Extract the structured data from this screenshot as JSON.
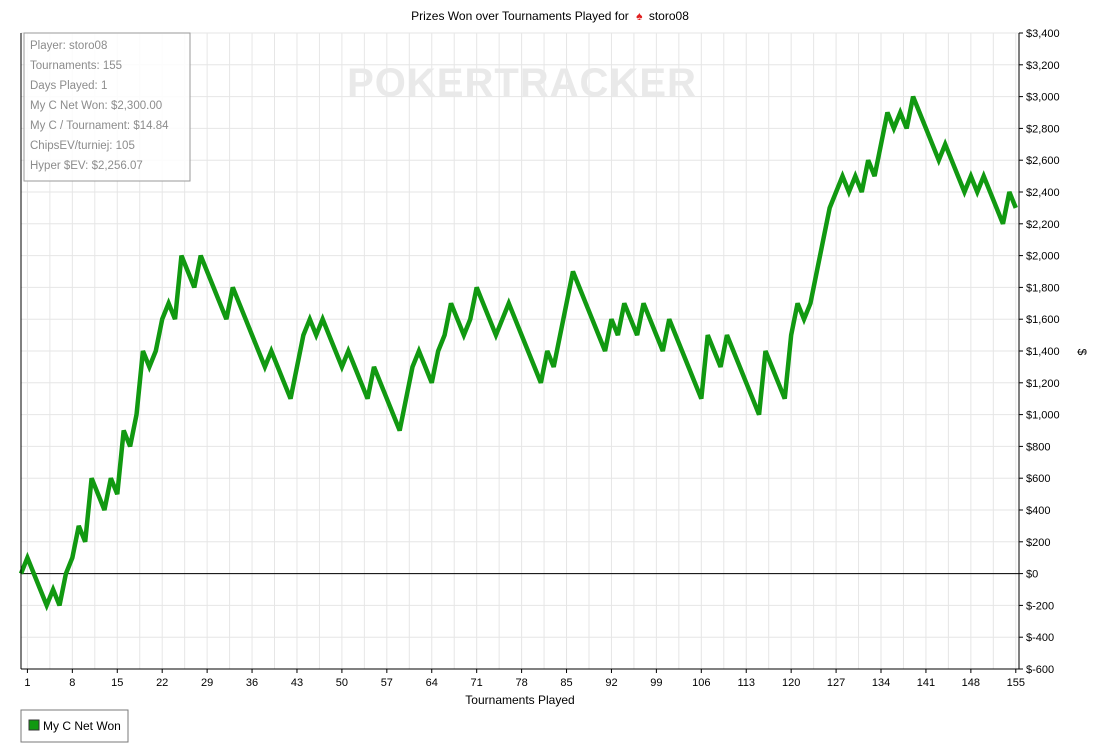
{
  "chart_data": {
    "type": "line",
    "title_prefix": "Prizes Won over Tournaments Played for",
    "player": "storo08",
    "xlabel": "Tournaments Played",
    "ylabel": "$",
    "xlim": [
      0,
      155.5
    ],
    "ylim": [
      -600,
      3400
    ],
    "y_ticks": [
      -600,
      -400,
      -200,
      0,
      200,
      400,
      600,
      800,
      1000,
      1200,
      1400,
      1600,
      1800,
      2000,
      2200,
      2400,
      2600,
      2800,
      3000,
      3200,
      3400
    ],
    "y_tick_labels": [
      "$-600",
      "$-400",
      "$-200",
      "$0",
      "$200",
      "$400",
      "$600",
      "$800",
      "$1,000",
      "$1,200",
      "$1,400",
      "$1,600",
      "$1,800",
      "$2,000",
      "$2,200",
      "$2,400",
      "$2,600",
      "$2,800",
      "$3,000",
      "$3,200",
      "$3,400"
    ],
    "x_ticks": [
      1,
      8,
      15,
      22,
      29,
      36,
      43,
      50,
      57,
      64,
      71,
      78,
      85,
      92,
      99,
      106,
      113,
      120,
      127,
      134,
      141,
      148,
      155
    ],
    "x_tick_labels": [
      "1",
      "8",
      "15",
      "22",
      "29",
      "36",
      "43",
      "50",
      "57",
      "64",
      "71",
      "78",
      "85",
      "92",
      "99",
      "106",
      "113",
      "120",
      "127",
      "134",
      "141",
      "148",
      "155"
    ],
    "grid": true,
    "legend_position": "bottom-left",
    "colors": {
      "series": "#119911",
      "zero_line": "#000000",
      "watermark": "#e9e9e9",
      "info_text": "#8c8c8c"
    },
    "series": [
      {
        "name": "My C Net Won",
        "x": [
          0,
          1,
          2,
          3,
          4,
          5,
          6,
          7,
          8,
          9,
          10,
          11,
          12,
          13,
          14,
          15,
          16,
          17,
          18,
          19,
          20,
          21,
          22,
          23,
          24,
          25,
          26,
          27,
          28,
          29,
          30,
          31,
          32,
          33,
          34,
          35,
          36,
          37,
          38,
          39,
          40,
          41,
          42,
          43,
          44,
          45,
          46,
          47,
          48,
          49,
          50,
          51,
          52,
          53,
          54,
          55,
          56,
          57,
          58,
          59,
          60,
          61,
          62,
          63,
          64,
          65,
          66,
          67,
          68,
          69,
          70,
          71,
          72,
          73,
          74,
          75,
          76,
          77,
          78,
          79,
          80,
          81,
          82,
          83,
          84,
          85,
          86,
          87,
          88,
          89,
          90,
          91,
          92,
          93,
          94,
          95,
          96,
          97,
          98,
          99,
          100,
          101,
          102,
          103,
          104,
          105,
          106,
          107,
          108,
          109,
          110,
          111,
          112,
          113,
          114,
          115,
          116,
          117,
          118,
          119,
          120,
          121,
          122,
          123,
          124,
          125,
          126,
          127,
          128,
          129,
          130,
          131,
          132,
          133,
          134,
          135,
          136,
          137,
          138,
          139,
          140,
          141,
          142,
          143,
          144,
          145,
          146,
          147,
          148,
          149,
          150,
          151,
          152,
          153,
          154,
          155
        ],
        "values": [
          0,
          100,
          0,
          -100,
          -200,
          -100,
          -200,
          0,
          100,
          300,
          200,
          600,
          500,
          400,
          600,
          500,
          900,
          800,
          1000,
          1400,
          1300,
          1400,
          1600,
          1700,
          1600,
          2000,
          1900,
          1800,
          2000,
          1900,
          1800,
          1700,
          1600,
          1800,
          1700,
          1600,
          1500,
          1400,
          1300,
          1400,
          1300,
          1200,
          1100,
          1300,
          1500,
          1600,
          1500,
          1600,
          1500,
          1400,
          1300,
          1400,
          1300,
          1200,
          1100,
          1300,
          1200,
          1100,
          1000,
          900,
          1100,
          1300,
          1400,
          1300,
          1200,
          1400,
          1500,
          1700,
          1600,
          1500,
          1600,
          1800,
          1700,
          1600,
          1500,
          1600,
          1700,
          1600,
          1500,
          1400,
          1300,
          1200,
          1400,
          1300,
          1500,
          1700,
          1900,
          1800,
          1700,
          1600,
          1500,
          1400,
          1600,
          1500,
          1700,
          1600,
          1500,
          1700,
          1600,
          1500,
          1400,
          1600,
          1500,
          1400,
          1300,
          1200,
          1100,
          1500,
          1400,
          1300,
          1500,
          1400,
          1300,
          1200,
          1100,
          1000,
          1400,
          1300,
          1200,
          1100,
          1500,
          1700,
          1600,
          1700,
          1900,
          2100,
          2300,
          2400,
          2500,
          2400,
          2500,
          2400,
          2600,
          2500,
          2700,
          2900,
          2800,
          2900,
          2800,
          3000,
          2900,
          2800,
          2700,
          2600,
          2700,
          2600,
          2500,
          2400,
          2500,
          2400,
          2500,
          2400,
          2300,
          2200,
          2400,
          2300
        ]
      }
    ]
  },
  "info_box": {
    "player": "Player: storo08",
    "tournaments": "Tournaments: 155",
    "days_played": "Days Played: 1",
    "net_won": "My C Net Won: $2,300.00",
    "per_tournament": "My C / Tournament: $14.84",
    "chips_ev": "ChipsEV/turniej: 105",
    "hyper_sev": "Hyper $EV: $2,256.07"
  },
  "watermark": "POKERTRACKER",
  "legend": {
    "label": "My C Net Won"
  }
}
